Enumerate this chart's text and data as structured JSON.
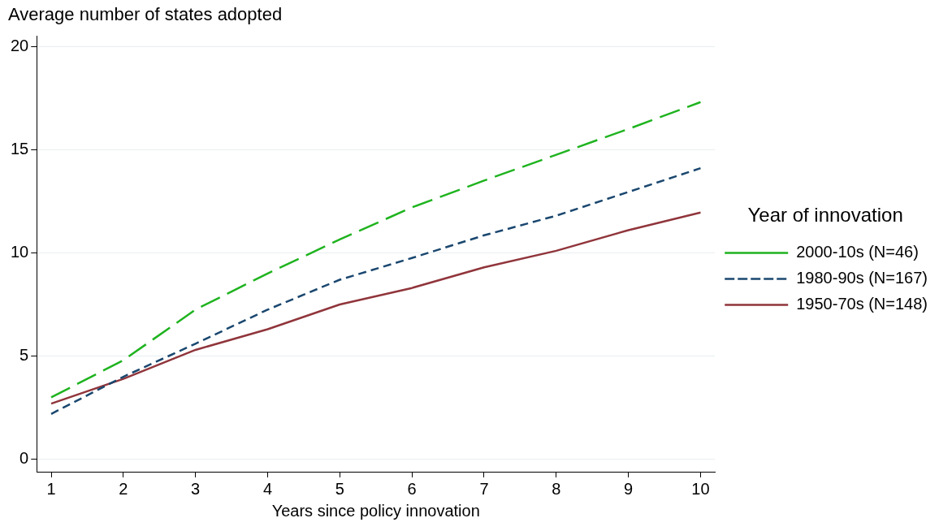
{
  "chart_data": {
    "type": "line",
    "ylabel": "Average number of states adopted",
    "xlabel": "Years since policy innovation",
    "legend_title": "Year of innovation",
    "legend": "right",
    "grid": "y",
    "marker": "none",
    "x": [
      1,
      2,
      3,
      4,
      5,
      6,
      7,
      8,
      9,
      10
    ],
    "xlim": [
      0.8,
      10.2
    ],
    "xticks": [
      1,
      2,
      3,
      4,
      5,
      6,
      7,
      8,
      9,
      10
    ],
    "ylim": [
      -0.6,
      20.5
    ],
    "yticks": [
      0,
      5,
      10,
      15,
      20
    ],
    "series": [
      {
        "name": "2000-10s (N=46)",
        "color": "#1fb31f",
        "line_style": "longdash",
        "values": [
          3.0,
          4.8,
          7.25,
          9.0,
          10.65,
          12.2,
          13.5,
          14.75,
          16.0,
          17.3
        ]
      },
      {
        "name": "1980-90s (N=167)",
        "color": "#1a476f",
        "line_style": "dashed",
        "values": [
          2.2,
          4.0,
          5.6,
          7.25,
          8.7,
          9.75,
          10.85,
          11.8,
          12.95,
          14.1
        ]
      },
      {
        "name": "1950-70s (N=148)",
        "color": "#90353b",
        "line_style": "solid",
        "values": [
          2.7,
          3.9,
          5.3,
          6.3,
          7.5,
          8.3,
          9.3,
          10.1,
          11.1,
          11.95
        ]
      }
    ]
  }
}
